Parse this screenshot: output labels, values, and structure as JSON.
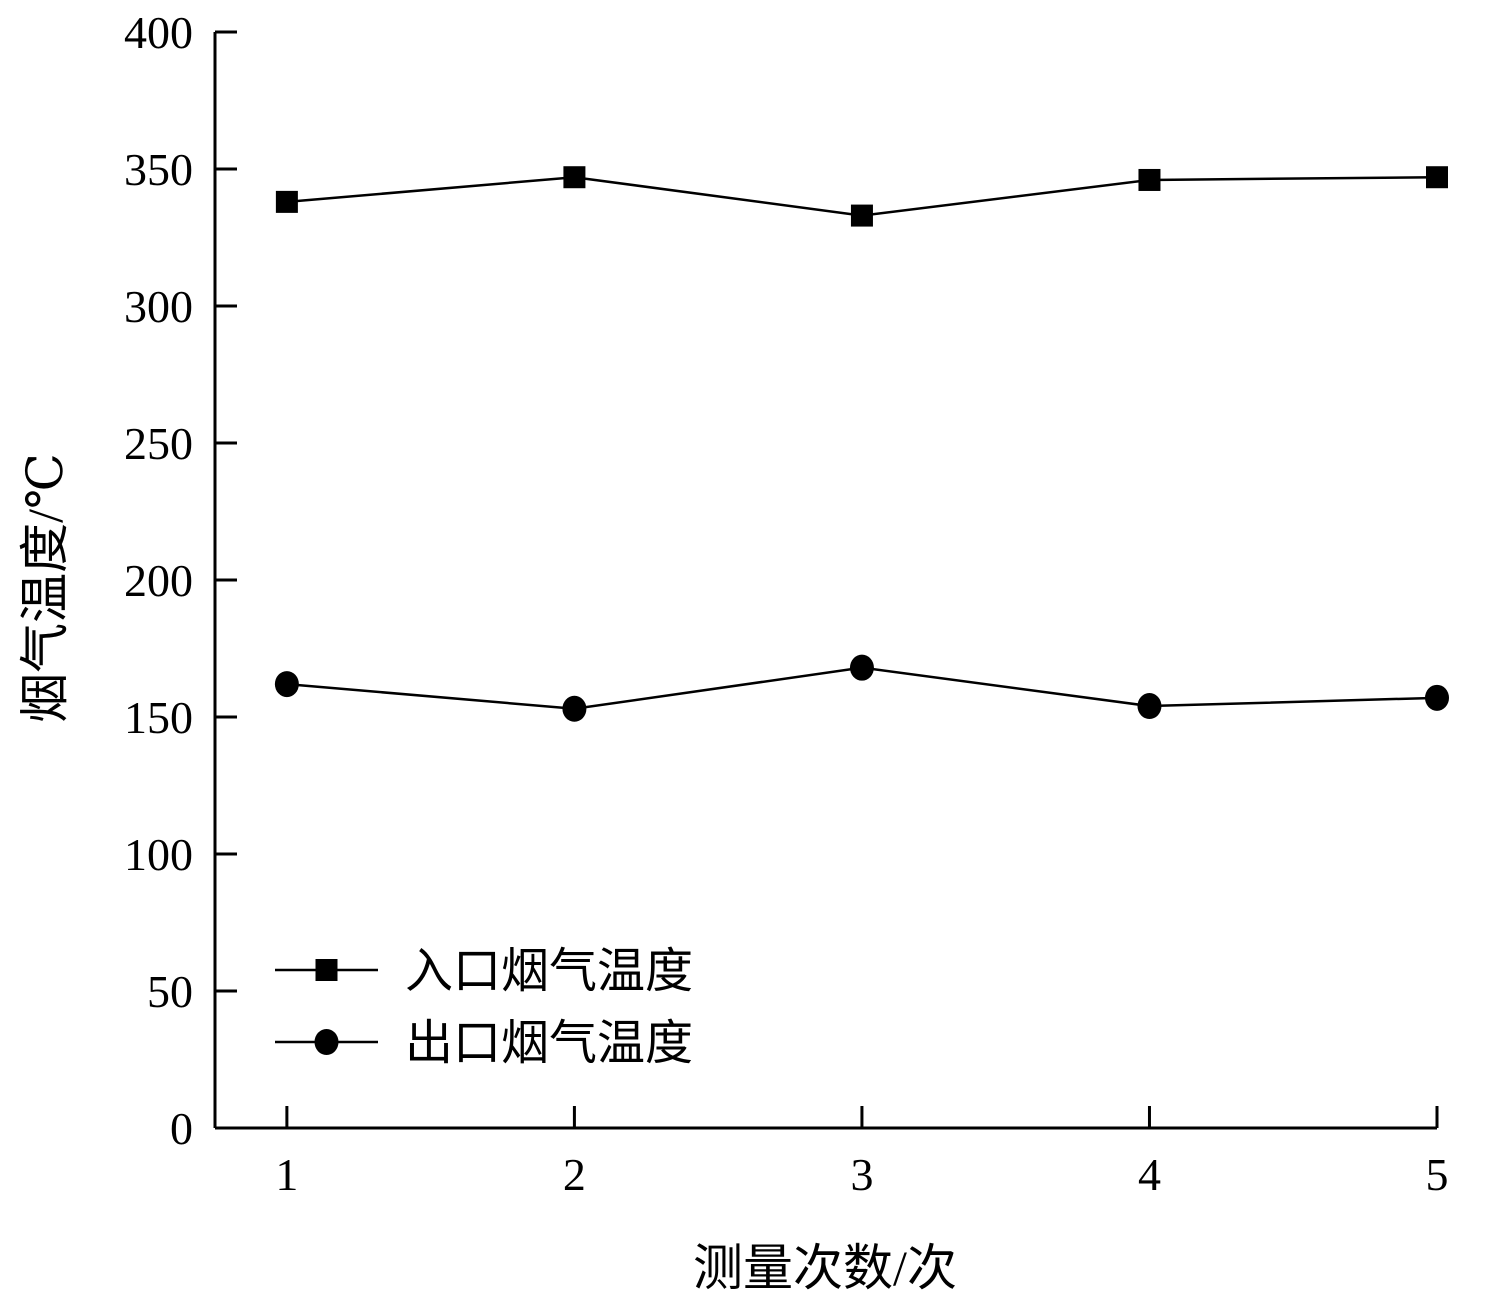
{
  "chart_data": {
    "type": "line",
    "title": "",
    "xlabel": "测量次数/次",
    "ylabel": "烟气温度/℃",
    "x": [
      1,
      2,
      3,
      4,
      5
    ],
    "xlim": [
      0.75,
      5
    ],
    "ylim": [
      0,
      400
    ],
    "yticks": [
      0,
      50,
      100,
      150,
      200,
      250,
      300,
      350,
      400
    ],
    "grid": false,
    "legend_position": "bottom-left",
    "series": [
      {
        "name": "入口烟气温度",
        "marker": "square",
        "color": "#000000",
        "values": [
          338,
          347,
          333,
          346,
          347
        ]
      },
      {
        "name": "出口烟气温度",
        "marker": "circle",
        "color": "#000000",
        "values": [
          162,
          153,
          168,
          154,
          157
        ]
      }
    ]
  }
}
